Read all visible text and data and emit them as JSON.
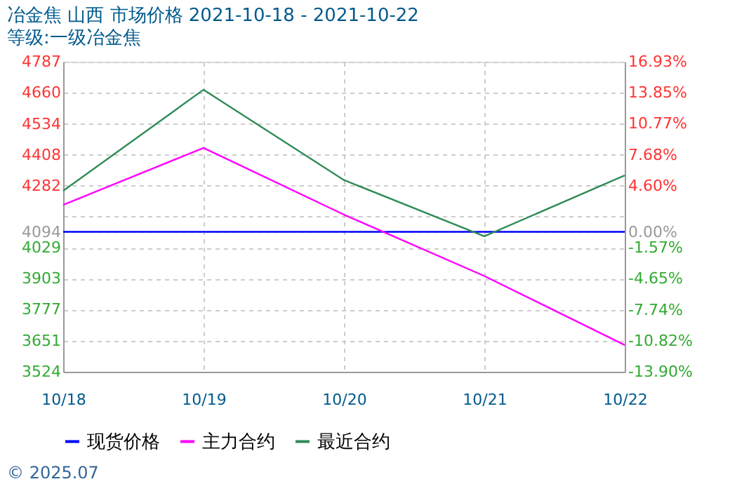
{
  "chart_data": {
    "type": "line",
    "title": "冶金焦 山西 市场价格 2021-10-18 - 2021-10-22",
    "subtitle": "等级:一级冶金焦",
    "categories": [
      "10/18",
      "10/19",
      "10/20",
      "10/21",
      "10/22"
    ],
    "series": [
      {
        "name": "现货价格",
        "color": "#0000ff",
        "values": [
          4094,
          4094,
          4094,
          4094,
          4094
        ]
      },
      {
        "name": "主力合约",
        "color": "#ff00ff",
        "values": [
          4204,
          4436,
          4164,
          3914,
          3633
        ]
      },
      {
        "name": "最近合约",
        "color": "#2e8b57",
        "values": [
          4261,
          4673,
          4305,
          4076,
          4324
        ]
      }
    ],
    "ylim": [
      3524,
      4787
    ],
    "yticks": [
      4787,
      4660,
      4534,
      4408,
      4282,
      {
        "value": 4156,
        "label": null
      },
      4094,
      4029,
      3903,
      3777,
      3651,
      3524
    ],
    "y2lim": [
      -13.9,
      16.93
    ],
    "y2ticks": [
      {
        "value": 16.93,
        "label": "16.93%"
      },
      {
        "value": 13.85,
        "label": "13.85%"
      },
      {
        "value": 10.77,
        "label": "10.77%"
      },
      {
        "value": 7.68,
        "label": "7.68%"
      },
      {
        "value": 4.6,
        "label": "4.60%"
      },
      {
        "value": 0,
        "label": "0.00%"
      },
      {
        "value": -1.57,
        "label": "-1.57%"
      },
      {
        "value": -4.65,
        "label": "-4.65%"
      },
      {
        "value": -7.74,
        "label": "-7.74%"
      },
      {
        "value": -10.82,
        "label": "-10.82%"
      },
      {
        "value": -13.9,
        "label": "-13.90%"
      }
    ],
    "grid": true,
    "legend": "bottom",
    "marker": "none",
    "line_style": "solid",
    "annotations": [
      "© 2025.07"
    ]
  }
}
